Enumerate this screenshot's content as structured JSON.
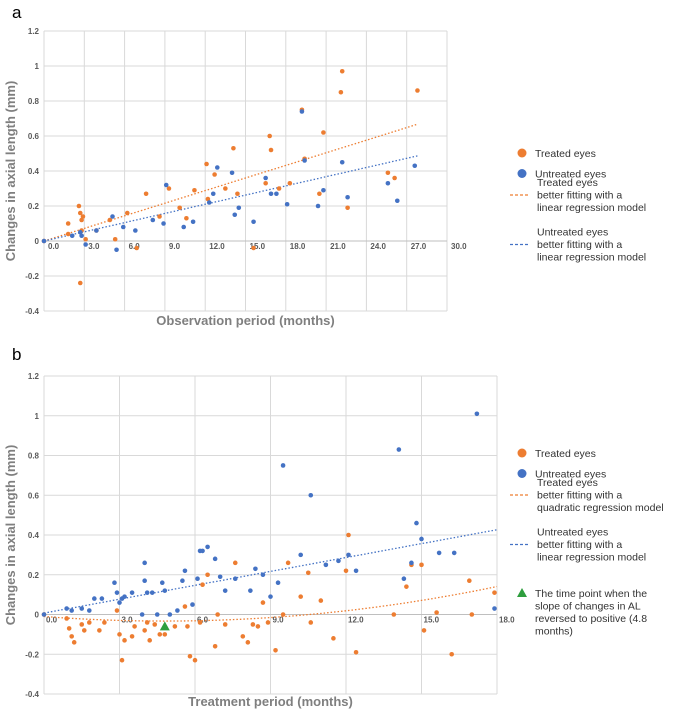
{
  "colors": {
    "treated": "#ED7D31",
    "untreated": "#4472C4",
    "marker": "#2E9E3E",
    "grid": "#d9d9d9"
  },
  "chart_data": [
    {
      "panel": "a",
      "type": "scatter",
      "xlabel": "Observation period (months)",
      "ylabel": "Changes in axial length (mm)",
      "xlim": [
        0,
        30
      ],
      "ylim": [
        -0.4,
        1.2
      ],
      "xticks": [
        "0.0",
        "3.0",
        "6.0",
        "9.0",
        "12.0",
        "15.0",
        "18.0",
        "21.0",
        "24.0",
        "27.0",
        "30.0"
      ],
      "yticks": [
        "-0.4",
        "-0.2",
        "0",
        "0.2",
        "0.4",
        "0.6",
        "0.8",
        "1",
        "1.2"
      ],
      "series": [
        {
          "name": "Treated eyes",
          "color": "#ED7D31",
          "points": [
            [
              0,
              0
            ],
            [
              1.8,
              0.04
            ],
            [
              1.8,
              0.1
            ],
            [
              2.6,
              0.2
            ],
            [
              2.7,
              0.16
            ],
            [
              2.8,
              0.12
            ],
            [
              2.8,
              0.06
            ],
            [
              2.9,
              0.14
            ],
            [
              2.7,
              -0.24
            ],
            [
              3.1,
              0.01
            ],
            [
              3.9,
              0.06
            ],
            [
              4.9,
              0.12
            ],
            [
              5.3,
              0.01
            ],
            [
              6.2,
              0.16
            ],
            [
              6.9,
              -0.04
            ],
            [
              7.6,
              0.27
            ],
            [
              8.6,
              0.14
            ],
            [
              9.3,
              0.3
            ],
            [
              10.1,
              0.19
            ],
            [
              10.6,
              0.13
            ],
            [
              11.2,
              0.29
            ],
            [
              12.1,
              0.44
            ],
            [
              12.2,
              0.24
            ],
            [
              12.7,
              0.38
            ],
            [
              13.5,
              0.3
            ],
            [
              14.1,
              0.53
            ],
            [
              14.4,
              0.27
            ],
            [
              15.6,
              -0.04
            ],
            [
              16.5,
              0.33
            ],
            [
              16.8,
              0.6
            ],
            [
              16.9,
              0.52
            ],
            [
              17.5,
              0.3
            ],
            [
              18.3,
              0.33
            ],
            [
              19.2,
              0.75
            ],
            [
              19.4,
              0.47
            ],
            [
              20.5,
              0.27
            ],
            [
              20.8,
              0.62
            ],
            [
              22.1,
              0.85
            ],
            [
              22.2,
              0.97
            ],
            [
              22.6,
              0.19
            ],
            [
              25.6,
              0.39
            ],
            [
              26.1,
              0.36
            ],
            [
              27.8,
              0.86
            ]
          ]
        },
        {
          "name": "Untreated eyes",
          "color": "#4472C4",
          "points": [
            [
              0,
              0
            ],
            [
              2.1,
              0.03
            ],
            [
              2.7,
              0.05
            ],
            [
              2.8,
              0.03
            ],
            [
              3.1,
              -0.02
            ],
            [
              3.9,
              0.06
            ],
            [
              5.1,
              0.14
            ],
            [
              5.4,
              -0.05
            ],
            [
              5.9,
              0.08
            ],
            [
              6.8,
              0.06
            ],
            [
              8.1,
              0.12
            ],
            [
              8.9,
              0.1
            ],
            [
              9.1,
              0.32
            ],
            [
              10.4,
              0.08
            ],
            [
              11.1,
              0.11
            ],
            [
              12.3,
              0.22
            ],
            [
              12.6,
              0.27
            ],
            [
              12.9,
              0.42
            ],
            [
              14.0,
              0.39
            ],
            [
              14.2,
              0.15
            ],
            [
              14.5,
              0.19
            ],
            [
              15.6,
              0.11
            ],
            [
              16.5,
              0.36
            ],
            [
              16.9,
              0.27
            ],
            [
              17.3,
              0.27
            ],
            [
              18.1,
              0.21
            ],
            [
              19.2,
              0.74
            ],
            [
              19.4,
              0.46
            ],
            [
              20.4,
              0.2
            ],
            [
              20.8,
              0.29
            ],
            [
              22.2,
              0.45
            ],
            [
              22.6,
              0.25
            ],
            [
              25.6,
              0.33
            ],
            [
              26.3,
              0.23
            ],
            [
              27.6,
              0.43
            ]
          ]
        }
      ],
      "trendlines": [
        {
          "name": "Treated eyes better fitting with a linear regression model",
          "type": "linear",
          "color": "#ED7D31",
          "coef": [
            0.024,
            0.0
          ],
          "x_range": [
            0,
            27.8
          ]
        },
        {
          "name": "Untreated eyes better fitting with a linear regression model",
          "type": "linear",
          "color": "#4472C4",
          "coef": [
            0.0175,
            0.0
          ],
          "x_range": [
            0,
            27.8
          ]
        }
      ],
      "legend": [
        {
          "kind": "dot",
          "color": "#ED7D31",
          "label": [
            "Treated eyes"
          ]
        },
        {
          "kind": "dot",
          "color": "#4472C4",
          "label": [
            "Untreated eyes"
          ]
        },
        {
          "kind": "dash",
          "color": "#ED7D31",
          "label": [
            "Treated eyes",
            "better fitting with a",
            "linear regression model"
          ]
        },
        {
          "kind": "dash",
          "color": "#4472C4",
          "label": [
            "Untreated eyes",
            "better fitting with a",
            "linear regression model"
          ]
        }
      ]
    },
    {
      "panel": "b",
      "type": "scatter",
      "xlabel": "Treatment period (months)",
      "ylabel": "Changes in axial length (mm)",
      "xlim": [
        0,
        18
      ],
      "ylim": [
        -0.4,
        1.2
      ],
      "xticks": [
        "0.0",
        "3.0",
        "6.0",
        "9.0",
        "12.0",
        "15.0",
        "18.0"
      ],
      "yticks": [
        "-0.4",
        "-0.2",
        "0",
        "0.2",
        "0.4",
        "0.6",
        "0.8",
        "1",
        "1.2"
      ],
      "series": [
        {
          "name": "Treated eyes",
          "color": "#ED7D31",
          "points": [
            [
              0,
              0
            ],
            [
              0.9,
              -0.02
            ],
            [
              1.0,
              -0.07
            ],
            [
              1.1,
              -0.11
            ],
            [
              1.2,
              -0.14
            ],
            [
              1.5,
              -0.05
            ],
            [
              1.6,
              -0.08
            ],
            [
              1.8,
              -0.04
            ],
            [
              2.2,
              -0.08
            ],
            [
              2.4,
              -0.04
            ],
            [
              2.9,
              0.02
            ],
            [
              3.0,
              -0.1
            ],
            [
              3.1,
              -0.23
            ],
            [
              3.2,
              -0.13
            ],
            [
              3.5,
              -0.11
            ],
            [
              3.6,
              -0.06
            ],
            [
              4.0,
              -0.08
            ],
            [
              4.1,
              -0.04
            ],
            [
              4.2,
              -0.13
            ],
            [
              4.4,
              -0.05
            ],
            [
              4.6,
              -0.1
            ],
            [
              4.8,
              -0.1
            ],
            [
              5.2,
              -0.06
            ],
            [
              5.6,
              0.04
            ],
            [
              5.7,
              -0.06
            ],
            [
              5.8,
              -0.21
            ],
            [
              6.0,
              -0.23
            ],
            [
              6.2,
              -0.04
            ],
            [
              6.3,
              0.15
            ],
            [
              6.5,
              0.2
            ],
            [
              6.8,
              -0.16
            ],
            [
              6.9,
              0.0
            ],
            [
              7.2,
              -0.05
            ],
            [
              7.6,
              0.26
            ],
            [
              7.9,
              -0.11
            ],
            [
              8.1,
              -0.14
            ],
            [
              8.3,
              -0.05
            ],
            [
              8.5,
              -0.06
            ],
            [
              8.7,
              0.06
            ],
            [
              8.9,
              -0.04
            ],
            [
              9.2,
              -0.18
            ],
            [
              9.5,
              0.0
            ],
            [
              9.7,
              0.26
            ],
            [
              10.2,
              0.09
            ],
            [
              10.5,
              0.21
            ],
            [
              10.6,
              -0.04
            ],
            [
              11.0,
              0.07
            ],
            [
              11.5,
              -0.12
            ],
            [
              12.0,
              0.22
            ],
            [
              12.1,
              0.4
            ],
            [
              12.4,
              -0.19
            ],
            [
              13.9,
              0.0
            ],
            [
              14.4,
              0.14
            ],
            [
              14.6,
              0.25
            ],
            [
              15.0,
              0.25
            ],
            [
              15.1,
              -0.08
            ],
            [
              15.6,
              0.01
            ],
            [
              16.2,
              -0.2
            ],
            [
              16.9,
              0.17
            ],
            [
              17.0,
              0.0
            ],
            [
              17.9,
              0.11
            ]
          ]
        },
        {
          "name": "Untreated eyes",
          "color": "#4472C4",
          "points": [
            [
              0,
              0
            ],
            [
              0.9,
              0.03
            ],
            [
              1.1,
              0.02
            ],
            [
              1.5,
              0.03
            ],
            [
              1.8,
              0.02
            ],
            [
              2.0,
              0.08
            ],
            [
              2.3,
              0.08
            ],
            [
              2.8,
              0.16
            ],
            [
              2.9,
              0.11
            ],
            [
              3.0,
              0.06
            ],
            [
              3.1,
              0.08
            ],
            [
              3.2,
              0.09
            ],
            [
              3.5,
              0.11
            ],
            [
              3.9,
              0.0
            ],
            [
              4.0,
              0.26
            ],
            [
              4.0,
              0.17
            ],
            [
              4.1,
              0.11
            ],
            [
              4.3,
              0.11
            ],
            [
              4.5,
              0.0
            ],
            [
              4.7,
              0.16
            ],
            [
              4.8,
              0.12
            ],
            [
              5.0,
              0.0
            ],
            [
              5.3,
              0.02
            ],
            [
              5.5,
              0.17
            ],
            [
              5.6,
              0.22
            ],
            [
              5.9,
              0.05
            ],
            [
              6.1,
              0.18
            ],
            [
              6.2,
              0.32
            ],
            [
              6.3,
              0.32
            ],
            [
              6.5,
              0.34
            ],
            [
              6.8,
              0.28
            ],
            [
              7.0,
              0.19
            ],
            [
              7.2,
              0.12
            ],
            [
              7.6,
              0.18
            ],
            [
              8.2,
              0.12
            ],
            [
              8.4,
              0.23
            ],
            [
              8.7,
              0.2
            ],
            [
              9.0,
              0.09
            ],
            [
              9.3,
              0.16
            ],
            [
              9.5,
              0.75
            ],
            [
              10.2,
              0.3
            ],
            [
              10.6,
              0.6
            ],
            [
              11.2,
              0.25
            ],
            [
              11.7,
              0.27
            ],
            [
              12.1,
              0.3
            ],
            [
              12.4,
              0.22
            ],
            [
              14.1,
              0.83
            ],
            [
              14.3,
              0.18
            ],
            [
              14.6,
              0.26
            ],
            [
              14.8,
              0.46
            ],
            [
              15.0,
              0.38
            ],
            [
              15.7,
              0.31
            ],
            [
              16.3,
              0.31
            ],
            [
              17.2,
              1.01
            ],
            [
              17.9,
              0.03
            ]
          ]
        }
      ],
      "trendlines": [
        {
          "name": "Treated eyes better fitting with a quadratic regression model",
          "type": "quadratic",
          "color": "#ED7D31",
          "coef": [
            0.000998,
            -0.009582,
            -0.01
          ],
          "x_range": [
            0,
            18
          ]
        },
        {
          "name": "Untreated eyes better fitting with a linear regression model",
          "type": "linear",
          "color": "#4472C4",
          "coef": [
            0.0233,
            0.007
          ],
          "x_range": [
            0,
            18
          ]
        }
      ],
      "annotations": [
        {
          "kind": "triangle",
          "color": "#2E9E3E",
          "x": 4.8,
          "y": -0.06
        }
      ],
      "legend": [
        {
          "kind": "dot",
          "color": "#ED7D31",
          "label": [
            "Treated eyes"
          ]
        },
        {
          "kind": "dot",
          "color": "#4472C4",
          "label": [
            "Untreated eyes"
          ]
        },
        {
          "kind": "dash",
          "color": "#ED7D31",
          "label": [
            "Treated eyes",
            "better fitting with a",
            "quadratic regression model"
          ]
        },
        {
          "kind": "dash",
          "color": "#4472C4",
          "label": [
            "Untreated eyes",
            "better fitting with a",
            "linear regression model"
          ]
        },
        {
          "kind": "triangle",
          "color": "#2E9E3E",
          "label": [
            "The time point when the",
            "slope of changes in AL",
            "reversed to positive (4.8",
            "months)"
          ]
        }
      ]
    }
  ]
}
